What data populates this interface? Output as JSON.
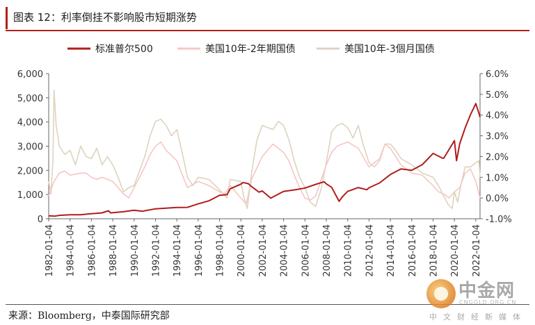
{
  "header": {
    "title": "图表 12：利率倒挂不影响股市短期涨势"
  },
  "source": {
    "text": "来源：Bloomberg，中泰国际研究部"
  },
  "watermark": {
    "brand": "中金网",
    "domain": "CNGOLD.ORG.CN",
    "slogan": "中文财经新媒体"
  },
  "chart_data": {
    "type": "line",
    "title": "",
    "xlabel": "",
    "legend": {
      "placement": "top",
      "entries": [
        "标准普尔500",
        "美国10年-2年期国债",
        "美国10年-3個月国债"
      ]
    },
    "x_ticks": [
      "1982-01-04",
      "1984-01-04",
      "1986-01-04",
      "1988-01-04",
      "1990-01-04",
      "1992-01-04",
      "1994-01-04",
      "1996-01-04",
      "1998-01-04",
      "2000-01-04",
      "2002-01-04",
      "2004-01-04",
      "2006-01-04",
      "2008-01-04",
      "2010-01-04",
      "2012-01-04",
      "2014-01-04",
      "2016-01-04",
      "2018-01-04",
      "2020-01-04",
      "2022-01-04"
    ],
    "left_axis": {
      "ylim": [
        0,
        6000
      ],
      "ticks": [
        "0",
        "1,000",
        "2,000",
        "3,000",
        "4,000",
        "5,000",
        "6,000"
      ]
    },
    "right_axis": {
      "ylim": [
        -1.0,
        6.0
      ],
      "ticks": [
        "-1.0%",
        "0.0%",
        "1.0%",
        "2.0%",
        "3.0%",
        "4.0%",
        "5.0%",
        "6.0%"
      ]
    },
    "x_range": [
      1982.0,
      2022.4
    ],
    "grid": false,
    "series": [
      {
        "name": "标准普尔500",
        "axis": "left",
        "color": "#b01c1c",
        "x": [
          1982.0,
          1982.6,
          1983.0,
          1984.0,
          1985.0,
          1986.0,
          1987.0,
          1987.6,
          1987.8,
          1988.0,
          1989.0,
          1990.0,
          1990.8,
          1991.0,
          1992.0,
          1993.0,
          1994.0,
          1995.0,
          1996.0,
          1997.0,
          1998.0,
          1998.7,
          1999.0,
          2000.0,
          2000.2,
          2000.7,
          2001.0,
          2001.7,
          2002.0,
          2002.8,
          2003.0,
          2004.0,
          2005.0,
          2006.0,
          2007.0,
          2007.8,
          2008.0,
          2008.5,
          2009.2,
          2009.5,
          2010.0,
          2011.0,
          2011.8,
          2012.0,
          2013.0,
          2014.0,
          2015.0,
          2016.0,
          2017.0,
          2018.0,
          2018.9,
          2019.0,
          2020.0,
          2020.2,
          2020.5,
          2021.0,
          2021.5,
          2022.0,
          2022.3,
          2022.4
        ],
        "y": [
          122,
          110,
          140,
          165,
          167,
          210,
          245,
          330,
          240,
          250,
          290,
          350,
          310,
          330,
          410,
          440,
          465,
          470,
          615,
          740,
          970,
          1000,
          1240,
          1430,
          1500,
          1450,
          1330,
          1100,
          1150,
          850,
          900,
          1130,
          1190,
          1270,
          1420,
          1530,
          1440,
          1300,
          720,
          900,
          1130,
          1290,
          1200,
          1280,
          1480,
          1830,
          2060,
          2000,
          2240,
          2700,
          2500,
          2500,
          3230,
          2400,
          3100,
          3750,
          4300,
          4760,
          4350,
          4200
        ]
      },
      {
        "name": "美国10年-2年期国债",
        "axis": "right",
        "color": "#f6c6c4",
        "x": [
          1982.0,
          1982.5,
          1983.0,
          1983.5,
          1984.0,
          1985.0,
          1985.5,
          1986.0,
          1986.5,
          1987.0,
          1988.0,
          1989.0,
          1989.5,
          1990.0,
          1991.0,
          1991.5,
          1992.0,
          1992.5,
          1993.0,
          1994.0,
          1994.6,
          1995.0,
          1996.0,
          1997.0,
          1998.0,
          1998.5,
          1999.0,
          2000.0,
          2000.5,
          2001.0,
          2002.0,
          2002.5,
          2003.0,
          2003.5,
          2004.0,
          2004.5,
          2005.0,
          2005.5,
          2006.0,
          2006.5,
          2007.0,
          2008.0,
          2008.5,
          2009.0,
          2010.0,
          2011.0,
          2012.0,
          2013.0,
          2013.5,
          2014.0,
          2015.0,
          2016.0,
          2017.0,
          2018.0,
          2018.5,
          2019.0,
          2019.5,
          2020.0,
          2020.5,
          2021.0,
          2021.5,
          2022.0,
          2022.4
        ],
        "y": [
          0.1,
          0.8,
          1.2,
          1.3,
          1.1,
          1.2,
          1.2,
          1.0,
          0.9,
          1.0,
          0.8,
          0.2,
          0.0,
          0.5,
          1.5,
          2.1,
          2.5,
          2.7,
          2.3,
          1.8,
          1.0,
          0.5,
          0.8,
          0.6,
          0.3,
          0.2,
          0.6,
          0.0,
          -0.3,
          0.9,
          2.0,
          2.3,
          2.6,
          2.4,
          2.2,
          1.8,
          1.1,
          0.5,
          0.0,
          -0.1,
          0.1,
          1.6,
          2.2,
          2.5,
          2.7,
          2.4,
          1.5,
          1.9,
          2.6,
          2.4,
          1.6,
          1.2,
          1.1,
          0.6,
          0.3,
          0.2,
          0.0,
          0.3,
          0.5,
          1.2,
          1.4,
          0.8,
          0.0
        ]
      },
      {
        "name": "美国10年-3個月国债",
        "axis": "right",
        "color": "#ddd3bf",
        "x": [
          1982.0,
          1982.2,
          1982.4,
          1982.5,
          1982.7,
          1983.0,
          1983.5,
          1984.0,
          1984.5,
          1985.0,
          1985.5,
          1986.0,
          1986.5,
          1987.0,
          1987.5,
          1988.0,
          1988.5,
          1989.0,
          1989.5,
          1990.0,
          1990.5,
          1991.0,
          1991.5,
          1992.0,
          1992.5,
          1993.0,
          1993.5,
          1994.0,
          1994.5,
          1995.0,
          1995.5,
          1996.0,
          1997.0,
          1998.0,
          1998.7,
          1999.0,
          2000.0,
          2000.3,
          2000.6,
          2001.0,
          2001.5,
          2002.0,
          2002.5,
          2003.0,
          2003.5,
          2004.0,
          2004.5,
          2005.0,
          2005.5,
          2006.0,
          2006.5,
          2007.0,
          2007.5,
          2008.0,
          2008.5,
          2009.0,
          2009.5,
          2010.0,
          2010.5,
          2011.0,
          2011.5,
          2012.0,
          2012.5,
          2013.0,
          2013.5,
          2014.0,
          2014.5,
          2015.0,
          2016.0,
          2017.0,
          2018.0,
          2018.5,
          2019.0,
          2019.4,
          2019.8,
          2020.0,
          2020.3,
          2020.6,
          2021.0,
          2021.5,
          2022.0,
          2022.3,
          2022.4
        ],
        "y": [
          0.8,
          0.2,
          1.8,
          5.2,
          3.5,
          2.5,
          2.1,
          2.3,
          1.6,
          2.5,
          2.0,
          1.9,
          2.4,
          1.6,
          2.0,
          1.6,
          1.0,
          0.3,
          0.5,
          0.6,
          1.3,
          2.0,
          3.0,
          3.7,
          3.8,
          3.5,
          3.0,
          3.3,
          2.2,
          1.0,
          0.6,
          1.0,
          0.9,
          0.4,
          0.0,
          0.9,
          0.8,
          0.0,
          -0.5,
          1.2,
          2.8,
          3.5,
          3.4,
          3.3,
          3.7,
          3.5,
          2.8,
          1.8,
          1.0,
          0.5,
          -0.2,
          -0.4,
          0.4,
          1.7,
          3.2,
          3.5,
          3.6,
          3.4,
          2.9,
          3.5,
          2.5,
          1.7,
          1.5,
          1.8,
          2.6,
          2.6,
          2.3,
          1.9,
          1.6,
          1.2,
          1.0,
          0.6,
          0.1,
          -0.3,
          -0.5,
          0.3,
          -0.2,
          0.6,
          1.5,
          1.5,
          1.7,
          1.8,
          1.0
        ]
      }
    ]
  }
}
